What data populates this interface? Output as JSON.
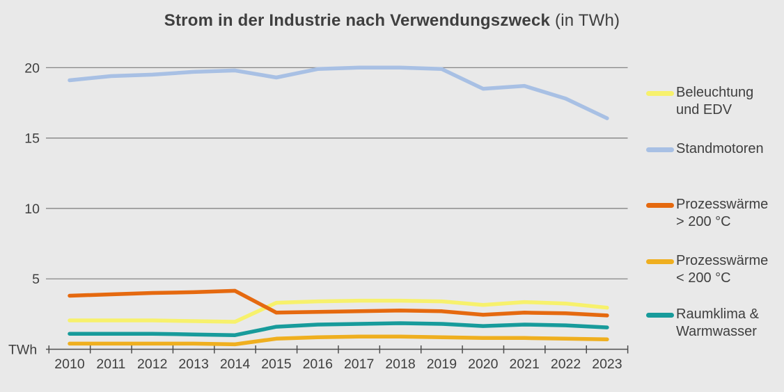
{
  "title": {
    "main": "Strom in der Industrie nach Verwendungszweck",
    "suffix": "(in TWh)"
  },
  "colors": {
    "background": "#E9E9E9",
    "gridline": "#7A7A7A",
    "axis": "#4D4D4D",
    "text": "#3F3F3F"
  },
  "chart_data": {
    "type": "line",
    "x": [
      2010,
      2011,
      2012,
      2013,
      2014,
      2015,
      2016,
      2017,
      2018,
      2019,
      2020,
      2021,
      2022,
      2023
    ],
    "series": [
      {
        "id": "beleuchtung-und-edv",
        "name": "Beleuchtung und EDV",
        "legend_lines": [
          "Beleuchtung",
          "und EDV"
        ],
        "color": "#F7F16C",
        "values": [
          2.05,
          2.05,
          2.05,
          2.0,
          1.95,
          3.3,
          3.4,
          3.45,
          3.45,
          3.4,
          3.15,
          3.35,
          3.25,
          2.95
        ]
      },
      {
        "id": "standmotoren",
        "name": "Standmotoren",
        "legend_lines": [
          "Standmotoren"
        ],
        "color": "#A8C0E4",
        "values": [
          19.1,
          19.4,
          19.5,
          19.7,
          19.8,
          19.3,
          19.9,
          20.0,
          20.0,
          19.9,
          18.5,
          18.7,
          17.8,
          16.4
        ]
      },
      {
        "id": "prozesswaerme-gt-200",
        "name": "Prozesswärme > 200 °C",
        "legend_lines": [
          "Prozesswärme",
          "> 200 °C"
        ],
        "color": "#E5690F",
        "values": [
          3.8,
          3.9,
          4.0,
          4.05,
          4.15,
          2.6,
          2.65,
          2.7,
          2.75,
          2.7,
          2.45,
          2.6,
          2.55,
          2.4
        ]
      },
      {
        "id": "prozesswaerme-lt-200",
        "name": "Prozesswärme < 200 °C",
        "legend_lines": [
          "Prozesswärme",
          "< 200 °C"
        ],
        "color": "#EFAF1F",
        "values": [
          0.4,
          0.4,
          0.4,
          0.4,
          0.35,
          0.75,
          0.85,
          0.9,
          0.9,
          0.85,
          0.8,
          0.8,
          0.75,
          0.7
        ]
      },
      {
        "id": "raumklima-warmwasser",
        "name": "Raumklima & Warmwasser",
        "legend_lines": [
          "Raumklima &",
          "Warmwasser"
        ],
        "color": "#189B9B",
        "values": [
          1.1,
          1.1,
          1.1,
          1.05,
          1.0,
          1.6,
          1.75,
          1.8,
          1.85,
          1.8,
          1.65,
          1.75,
          1.7,
          1.55
        ]
      }
    ],
    "ylabel": "TWh",
    "yticks": [
      5,
      10,
      15,
      20
    ],
    "ylim": [
      0,
      20
    ],
    "grid": true,
    "legend_position": "right"
  }
}
